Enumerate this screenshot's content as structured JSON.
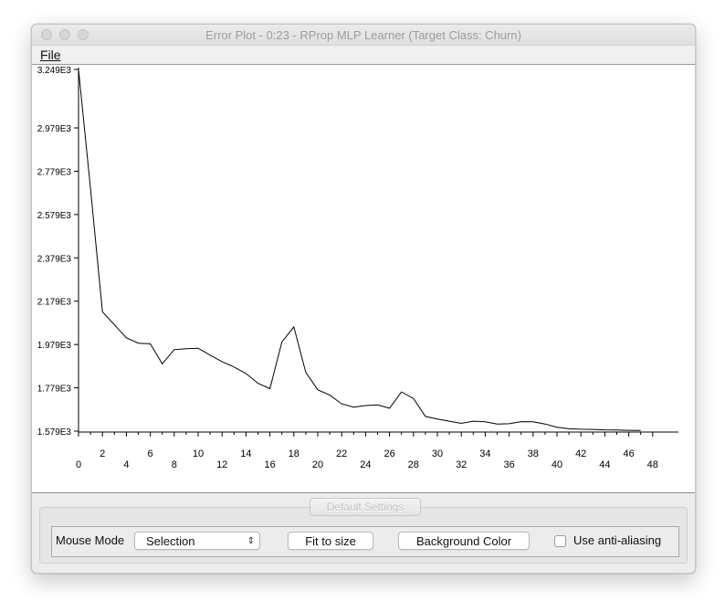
{
  "window": {
    "title": "Error Plot - 0:23 - RProp MLP Learner (Target Class: Churn)"
  },
  "menu": {
    "file_label": "File"
  },
  "chart_data": {
    "type": "line",
    "title": "",
    "xlabel": "",
    "ylabel": "",
    "xlim": [
      0,
      50
    ],
    "ylim": [
      1579,
      3249
    ],
    "y_tick_labels": [
      "3.249E3",
      "2.979E3",
      "2.779E3",
      "2.579E3",
      "2.379E3",
      "2.179E3",
      "1.979E3",
      "1.779E3",
      "1.579E3"
    ],
    "y_tick_values": [
      3249,
      2979,
      2779,
      2579,
      2379,
      2179,
      1979,
      1779,
      1579
    ],
    "x_ticks_upper": [
      "2",
      "6",
      "10",
      "14",
      "18",
      "22",
      "26",
      "30",
      "34",
      "38",
      "42",
      "46"
    ],
    "x_ticks_lower": [
      "0",
      "4",
      "8",
      "12",
      "16",
      "20",
      "24",
      "28",
      "32",
      "36",
      "40",
      "44",
      "48"
    ],
    "grid": false,
    "series": [
      {
        "x": [
          0,
          1,
          2,
          3,
          4,
          5,
          6,
          7,
          8,
          9,
          10,
          11,
          12,
          13,
          14,
          15,
          16,
          17,
          18,
          19,
          20,
          21,
          22,
          23,
          24,
          25,
          26,
          27,
          28,
          29,
          30,
          31,
          32,
          33,
          34,
          35,
          36,
          37,
          38,
          39,
          40,
          41,
          42,
          43,
          44,
          45,
          46,
          47
        ],
        "y": [
          3249,
          2700,
          2130,
          2070,
          2010,
          1985,
          1982,
          1890,
          1955,
          1960,
          1962,
          1930,
          1900,
          1875,
          1845,
          1800,
          1775,
          1990,
          2060,
          1850,
          1770,
          1745,
          1705,
          1690,
          1697,
          1700,
          1685,
          1760,
          1730,
          1647,
          1635,
          1625,
          1615,
          1625,
          1622,
          1612,
          1613,
          1623,
          1622,
          1612,
          1597,
          1590,
          1588,
          1587,
          1585,
          1584,
          1583,
          1582
        ]
      }
    ]
  },
  "controls": {
    "default_settings_label": "Default Settings",
    "mouse_mode_label": "Mouse Mode",
    "mouse_mode_value": "Selection",
    "fit_to_size_label": "Fit to size",
    "background_color_label": "Background Color",
    "anti_aliasing_label": "Use anti-aliasing",
    "anti_aliasing_checked": false
  }
}
